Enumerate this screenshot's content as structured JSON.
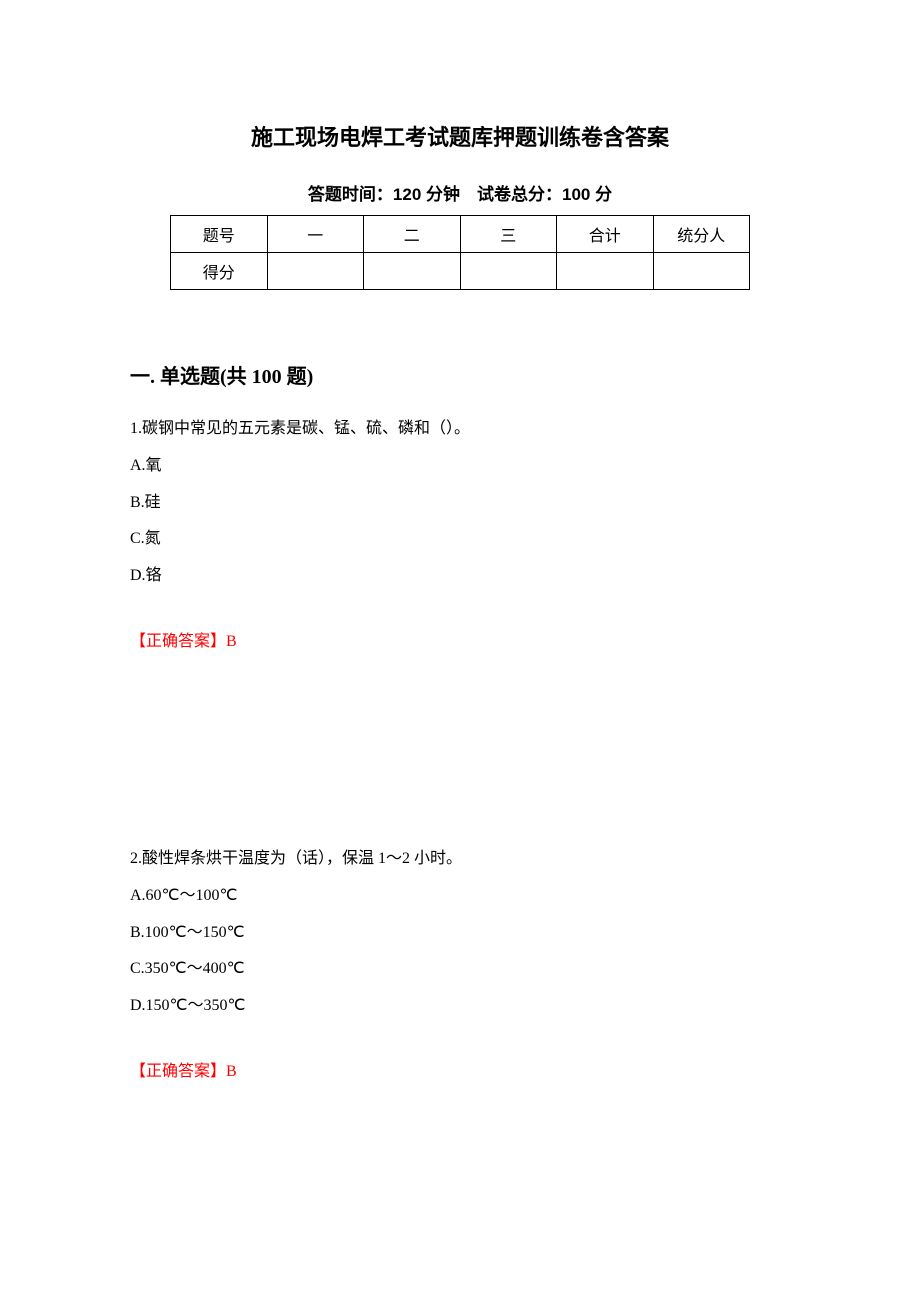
{
  "title": "施工现场电焊工考试题库押题训练卷含答案",
  "subtitle_prefix": "答题时间：",
  "subtitle_time": "120 分钟",
  "subtitle_spacer": "　",
  "subtitle_total_prefix": "试卷总分：",
  "subtitle_total": "100 分",
  "table": {
    "headers": [
      "题号",
      "一",
      "二",
      "三",
      "合计",
      "统分人"
    ],
    "row2_label": "得分"
  },
  "section_heading": "一. 单选题(共 100 题)",
  "q1": {
    "text": "1.碳钢中常见的五元素是碳、锰、硫、磷和（）。",
    "options": [
      "A.氧",
      "B.硅",
      "C.氮",
      "D.铬"
    ],
    "answer_label": "【正确答案】",
    "answer_value": "B"
  },
  "q2": {
    "text": "2.酸性焊条烘干温度为（话），保温 1～2 小时。",
    "options": [
      "A.60℃～100℃",
      "B.100℃～150℃",
      "C.350℃～400℃",
      "D.150℃～350℃"
    ],
    "answer_label": "【正确答案】",
    "answer_value": "B"
  },
  "colors": {
    "text": "#000000",
    "answer": "#ff0000",
    "background": "#ffffff",
    "border": "#000000"
  }
}
